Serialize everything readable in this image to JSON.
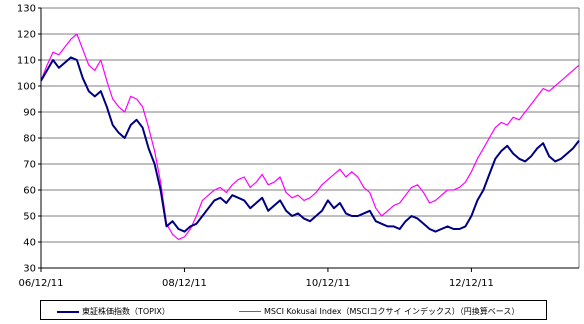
{
  "chart_data": {
    "type": "line",
    "title": "",
    "xlabel": "",
    "ylabel": "",
    "ylim": [
      30,
      130
    ],
    "yticks": [
      30,
      40,
      50,
      60,
      70,
      80,
      90,
      100,
      110,
      120,
      130
    ],
    "xlim": [
      "2006-12",
      "2014-06"
    ],
    "xticks": [
      {
        "value": "2006-12",
        "label": "06/12/11"
      },
      {
        "value": "2008-12",
        "label": "08/12/11"
      },
      {
        "value": "2010-12",
        "label": "10/12/11"
      },
      {
        "value": "2012-12",
        "label": "12/12/11"
      }
    ],
    "grid": {
      "horizontal": true,
      "vertical": false
    },
    "legend_position": "bottom",
    "series": [
      {
        "name": "東証株価指数（TOPIX）",
        "color": "#000080",
        "x": [
          "2006-12",
          "2007-01",
          "2007-02",
          "2007-03",
          "2007-04",
          "2007-05",
          "2007-06",
          "2007-07",
          "2007-08",
          "2007-09",
          "2007-10",
          "2007-11",
          "2007-12",
          "2008-01",
          "2008-02",
          "2008-03",
          "2008-04",
          "2008-05",
          "2008-06",
          "2008-07",
          "2008-08",
          "2008-09",
          "2008-10",
          "2008-11",
          "2008-12",
          "2009-01",
          "2009-02",
          "2009-03",
          "2009-04",
          "2009-05",
          "2009-06",
          "2009-07",
          "2009-08",
          "2009-09",
          "2009-10",
          "2009-11",
          "2009-12",
          "2010-01",
          "2010-02",
          "2010-03",
          "2010-04",
          "2010-05",
          "2010-06",
          "2010-07",
          "2010-08",
          "2010-09",
          "2010-10",
          "2010-11",
          "2010-12",
          "2011-01",
          "2011-02",
          "2011-03",
          "2011-04",
          "2011-05",
          "2011-06",
          "2011-07",
          "2011-08",
          "2011-09",
          "2011-10",
          "2011-11",
          "2011-12",
          "2012-01",
          "2012-02",
          "2012-03",
          "2012-04",
          "2012-05",
          "2012-06",
          "2012-07",
          "2012-08",
          "2012-09",
          "2012-10",
          "2012-11",
          "2012-12",
          "2013-01",
          "2013-02",
          "2013-03",
          "2013-04",
          "2013-05",
          "2013-06",
          "2013-07",
          "2013-08",
          "2013-09",
          "2013-10",
          "2013-11",
          "2013-12",
          "2014-01",
          "2014-02",
          "2014-03",
          "2014-04",
          "2014-05",
          "2014-06"
        ],
        "values": [
          102,
          106,
          110,
          107,
          109,
          111,
          110,
          103,
          98,
          96,
          98,
          92,
          85,
          82,
          80,
          85,
          87,
          84,
          76,
          70,
          60,
          46,
          48,
          45,
          44,
          46,
          47,
          50,
          53,
          56,
          57,
          55,
          58,
          57,
          56,
          53,
          55,
          57,
          52,
          54,
          56,
          52,
          50,
          51,
          49,
          48,
          50,
          52,
          56,
          53,
          55,
          51,
          50,
          50,
          51,
          52,
          48,
          47,
          46,
          46,
          45,
          48,
          50,
          49,
          47,
          45,
          44,
          45,
          46,
          45,
          45,
          46,
          50,
          56,
          60,
          66,
          72,
          75,
          77,
          74,
          72,
          71,
          73,
          76,
          78,
          73,
          71,
          72,
          74,
          76,
          79
        ]
      },
      {
        "name": "MSCI Kokusai Index（MSCIコクサイ インデックス）（円換算ベース）",
        "color": "#ff00ff",
        "x": [
          "2006-12",
          "2007-01",
          "2007-02",
          "2007-03",
          "2007-04",
          "2007-05",
          "2007-06",
          "2007-07",
          "2007-08",
          "2007-09",
          "2007-10",
          "2007-11",
          "2007-12",
          "2008-01",
          "2008-02",
          "2008-03",
          "2008-04",
          "2008-05",
          "2008-06",
          "2008-07",
          "2008-08",
          "2008-09",
          "2008-10",
          "2008-11",
          "2008-12",
          "2009-01",
          "2009-02",
          "2009-03",
          "2009-04",
          "2009-05",
          "2009-06",
          "2009-07",
          "2009-08",
          "2009-09",
          "2009-10",
          "2009-11",
          "2009-12",
          "2010-01",
          "2010-02",
          "2010-03",
          "2010-04",
          "2010-05",
          "2010-06",
          "2010-07",
          "2010-08",
          "2010-09",
          "2010-10",
          "2010-11",
          "2010-12",
          "2011-01",
          "2011-02",
          "2011-03",
          "2011-04",
          "2011-05",
          "2011-06",
          "2011-07",
          "2011-08",
          "2011-09",
          "2011-10",
          "2011-11",
          "2011-12",
          "2012-01",
          "2012-02",
          "2012-03",
          "2012-04",
          "2012-05",
          "2012-06",
          "2012-07",
          "2012-08",
          "2012-09",
          "2012-10",
          "2012-11",
          "2012-12",
          "2013-01",
          "2013-02",
          "2013-03",
          "2013-04",
          "2013-05",
          "2013-06",
          "2013-07",
          "2013-08",
          "2013-09",
          "2013-10",
          "2013-11",
          "2013-12",
          "2014-01",
          "2014-02",
          "2014-03",
          "2014-04",
          "2014-05",
          "2014-06"
        ],
        "values": [
          102,
          108,
          113,
          112,
          115,
          118,
          120,
          114,
          108,
          106,
          110,
          102,
          95,
          92,
          90,
          96,
          95,
          92,
          84,
          75,
          63,
          47,
          43,
          41,
          42,
          45,
          50,
          56,
          58,
          60,
          61,
          59,
          62,
          64,
          65,
          61,
          63,
          66,
          62,
          63,
          65,
          59,
          57,
          58,
          56,
          57,
          59,
          62,
          64,
          66,
          68,
          65,
          67,
          65,
          61,
          59,
          53,
          50,
          52,
          54,
          55,
          58,
          61,
          62,
          59,
          55,
          56,
          58,
          60,
          60,
          61,
          63,
          67,
          72,
          76,
          80,
          84,
          86,
          85,
          88,
          87,
          90,
          93,
          96,
          99,
          98,
          100,
          102,
          104,
          106,
          108
        ]
      }
    ]
  }
}
